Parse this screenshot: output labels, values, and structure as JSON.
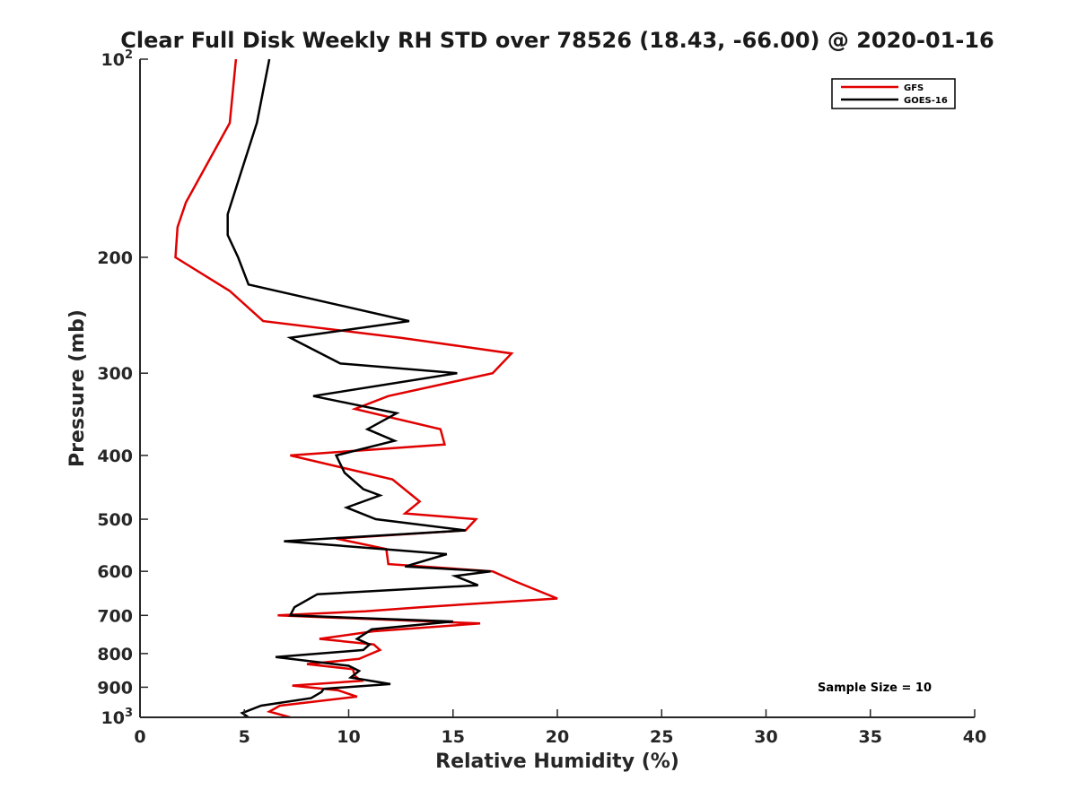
{
  "chart_data": {
    "type": "line",
    "title": "Clear Full Disk Weekly RH STD over 78526 (18.43, -66.00) @ 2020-01-16",
    "xlabel": "Relative Humidity (%)",
    "ylabel": "Pressure (mb)",
    "xlim": [
      0,
      40
    ],
    "ylim": [
      100,
      1000
    ],
    "yscale": "log",
    "y_reversed": true,
    "x_ticks": [
      "0",
      "5",
      "10",
      "15",
      "20",
      "25",
      "30",
      "35",
      "40"
    ],
    "y_ticks": [
      {
        "value": 100,
        "base": "10",
        "exp": "2"
      },
      {
        "value": 200,
        "base": "200",
        "exp": ""
      },
      {
        "value": 300,
        "base": "300",
        "exp": ""
      },
      {
        "value": 400,
        "base": "400",
        "exp": ""
      },
      {
        "value": 500,
        "base": "500",
        "exp": ""
      },
      {
        "value": 600,
        "base": "600",
        "exp": ""
      },
      {
        "value": 700,
        "base": "700",
        "exp": ""
      },
      {
        "value": 800,
        "base": "800",
        "exp": ""
      },
      {
        "value": 900,
        "base": "900",
        "exp": ""
      },
      {
        "value": 1000,
        "base": "10",
        "exp": "3"
      }
    ],
    "grid": false,
    "legend_position": "top-right",
    "annotation": "Sample Size = 10",
    "series": [
      {
        "name": "GFS",
        "color": "#e00000",
        "points": [
          [
            4.6,
            100
          ],
          [
            4.3,
            125
          ],
          [
            2.2,
            165
          ],
          [
            1.8,
            180
          ],
          [
            1.7,
            200
          ],
          [
            4.3,
            225
          ],
          [
            5.9,
            250
          ],
          [
            12.5,
            265
          ],
          [
            17.8,
            280
          ],
          [
            16.9,
            300
          ],
          [
            11.9,
            325
          ],
          [
            10.3,
            340
          ],
          [
            14.4,
            365
          ],
          [
            14.6,
            385
          ],
          [
            7.2,
            400
          ],
          [
            12.1,
            435
          ],
          [
            13.4,
            470
          ],
          [
            12.7,
            490
          ],
          [
            16.1,
            500
          ],
          [
            15.6,
            520
          ],
          [
            9.4,
            535
          ],
          [
            11.8,
            555
          ],
          [
            11.9,
            585
          ],
          [
            16.9,
            600
          ],
          [
            17.9,
            620
          ],
          [
            20.0,
            660
          ],
          [
            13.5,
            680
          ],
          [
            10.8,
            690
          ],
          [
            6.6,
            700
          ],
          [
            16.3,
            720
          ],
          [
            11.2,
            740
          ],
          [
            8.6,
            760
          ],
          [
            11.2,
            775
          ],
          [
            11.5,
            790
          ],
          [
            10.5,
            815
          ],
          [
            8.0,
            830
          ],
          [
            10.2,
            845
          ],
          [
            10.3,
            865
          ],
          [
            10.6,
            880
          ],
          [
            7.3,
            895
          ],
          [
            9.5,
            910
          ],
          [
            10.4,
            930
          ],
          [
            6.7,
            960
          ],
          [
            6.2,
            980
          ],
          [
            7.2,
            1000
          ]
        ]
      },
      {
        "name": "GOES-16",
        "color": "#000000",
        "points": [
          [
            6.2,
            100
          ],
          [
            5.6,
            125
          ],
          [
            4.8,
            150
          ],
          [
            4.2,
            172
          ],
          [
            4.2,
            185
          ],
          [
            4.7,
            200
          ],
          [
            5.2,
            220
          ],
          [
            12.9,
            250
          ],
          [
            7.2,
            265
          ],
          [
            9.6,
            290
          ],
          [
            15.2,
            300
          ],
          [
            8.3,
            325
          ],
          [
            12.3,
            345
          ],
          [
            10.9,
            365
          ],
          [
            12.2,
            380
          ],
          [
            9.4,
            400
          ],
          [
            9.8,
            425
          ],
          [
            10.7,
            450
          ],
          [
            11.5,
            460
          ],
          [
            9.9,
            480
          ],
          [
            11.3,
            500
          ],
          [
            15.6,
            520
          ],
          [
            6.9,
            540
          ],
          [
            14.7,
            565
          ],
          [
            12.7,
            590
          ],
          [
            16.8,
            600
          ],
          [
            15.1,
            610
          ],
          [
            16.2,
            630
          ],
          [
            8.5,
            650
          ],
          [
            7.4,
            680
          ],
          [
            7.2,
            700
          ],
          [
            15.0,
            715
          ],
          [
            11.1,
            735
          ],
          [
            10.4,
            760
          ],
          [
            11.0,
            775
          ],
          [
            10.7,
            790
          ],
          [
            6.5,
            810
          ],
          [
            10.0,
            835
          ],
          [
            10.5,
            850
          ],
          [
            10.1,
            870
          ],
          [
            12.0,
            890
          ],
          [
            8.8,
            905
          ],
          [
            8.7,
            915
          ],
          [
            8.2,
            935
          ],
          [
            5.8,
            960
          ],
          [
            4.9,
            985
          ],
          [
            5.2,
            1000
          ]
        ]
      }
    ]
  }
}
